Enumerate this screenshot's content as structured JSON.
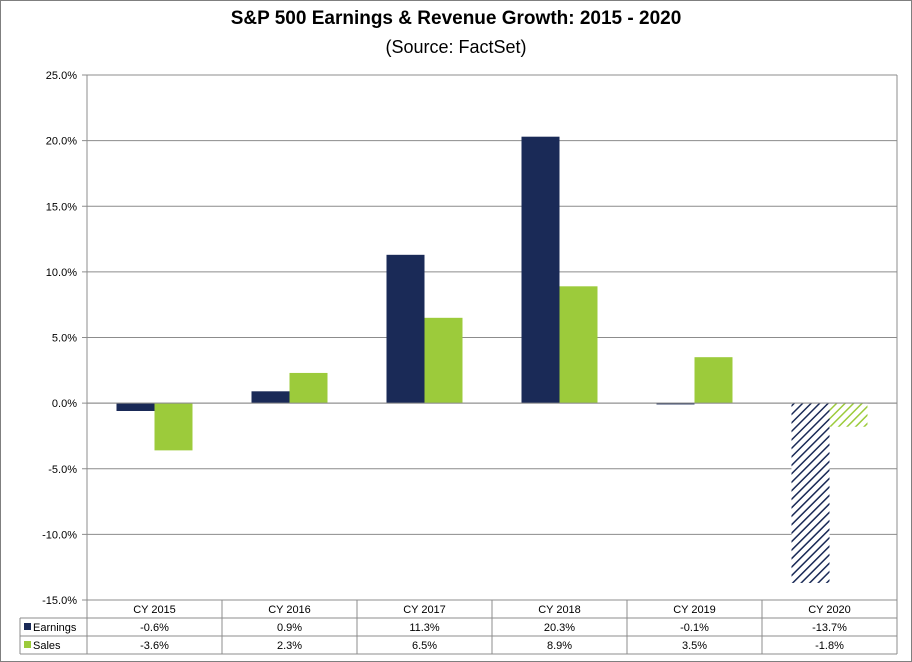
{
  "chart_data": {
    "type": "bar",
    "title": "S&P 500 Earnings & Revenue Growth:  2015 - 2020",
    "subtitle": "(Source: FactSet)",
    "categories": [
      "CY 2015",
      "CY 2016",
      "CY 2017",
      "CY 2018",
      "CY 2019",
      "CY 2020"
    ],
    "series": [
      {
        "name": "Earnings",
        "color": "#1a2a57",
        "values": [
          -0.6,
          0.9,
          11.3,
          20.3,
          -0.1,
          -13.7
        ],
        "labels": [
          "-0.6%",
          "0.9%",
          "11.3%",
          "20.3%",
          "-0.1%",
          "-13.7%"
        ],
        "hatched": [
          false,
          false,
          false,
          false,
          false,
          true
        ]
      },
      {
        "name": "Sales",
        "color": "#9ccb3b",
        "values": [
          -3.6,
          2.3,
          6.5,
          8.9,
          3.5,
          -1.8
        ],
        "labels": [
          "-3.6%",
          "2.3%",
          "6.5%",
          "8.9%",
          "3.5%",
          "-1.8%"
        ],
        "hatched": [
          false,
          false,
          false,
          false,
          false,
          true
        ]
      }
    ],
    "ylim": [
      -15,
      25
    ],
    "yticks": [
      25,
      20,
      15,
      10,
      5,
      0,
      -5,
      -10,
      -15
    ],
    "ytick_labels": [
      "25.0%",
      "20.0%",
      "15.0%",
      "10.0%",
      "5.0%",
      "0.0%",
      "-5.0%",
      "-10.0%",
      "-15.0%"
    ],
    "grid": true,
    "legend": "data-table"
  }
}
